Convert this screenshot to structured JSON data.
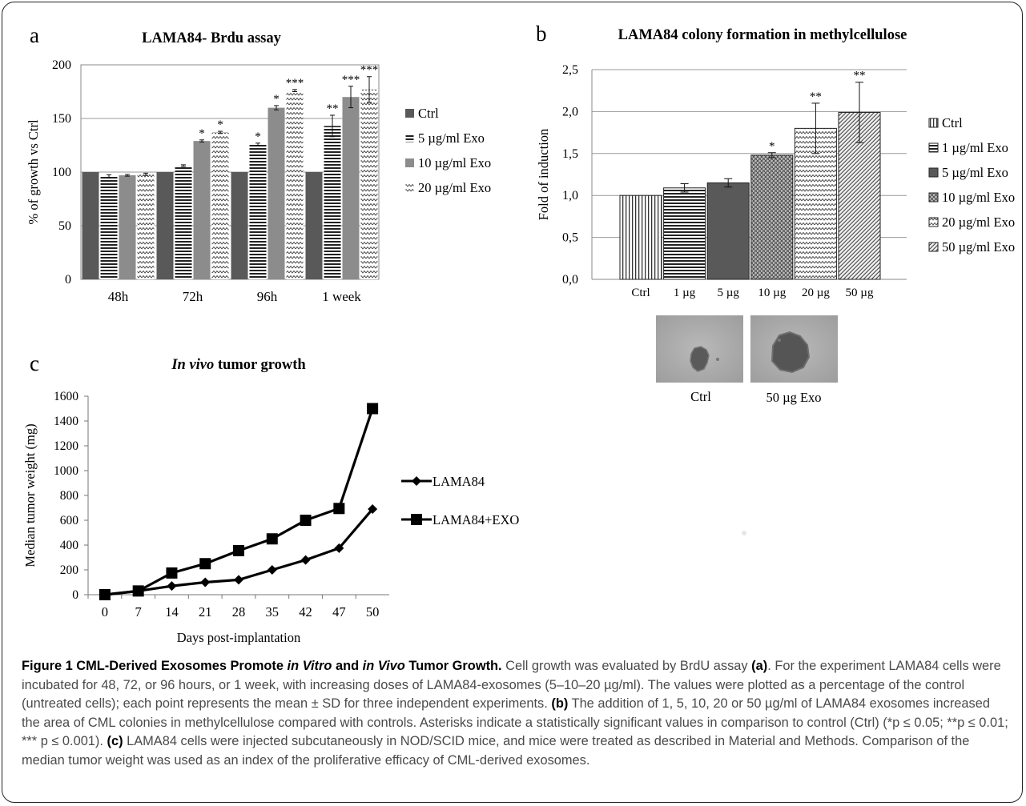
{
  "chart_data": [
    {
      "panel": "a",
      "type": "bar",
      "title": "LAMA84- Brdu assay",
      "xlabel": "",
      "ylabel": "% of growth vs Ctrl",
      "categories": [
        "48h",
        "72h",
        "96h",
        "1 week"
      ],
      "ylim": [
        0,
        200
      ],
      "yticks": [
        "0",
        "50",
        "100",
        "150",
        "200"
      ],
      "grid": true,
      "legend_position": "right",
      "series": [
        {
          "name": "Ctrl",
          "values": [
            100,
            100,
            100,
            100
          ],
          "errors": [
            0,
            0,
            0,
            0
          ],
          "stars": [
            "",
            "",
            "",
            ""
          ],
          "fill": "solid-dark"
        },
        {
          "name": "5 µg/ml Exo",
          "values": [
            96,
            106,
            126,
            143
          ],
          "errors": [
            1.5,
            0.8,
            1,
            10
          ],
          "stars": [
            "",
            "",
            "*",
            "**"
          ],
          "fill": "horizontal-lines"
        },
        {
          "name": "10 µg/ml Exo",
          "values": [
            97,
            129,
            160,
            170
          ],
          "errors": [
            0.8,
            1,
            2,
            10
          ],
          "stars": [
            "",
            "*",
            "*",
            "***"
          ],
          "fill": "solid-gray"
        },
        {
          "name": "20 µg/ml Exo",
          "values": [
            98,
            137,
            176,
            177
          ],
          "errors": [
            1,
            1,
            1,
            12
          ],
          "stars": [
            "",
            "*",
            "***",
            "***"
          ],
          "fill": "zigzag"
        }
      ]
    },
    {
      "panel": "b",
      "type": "bar",
      "title": "LAMA84 colony formation in methylcellulose",
      "xlabel": "",
      "ylabel": "Fold of induction",
      "categories": [
        "Ctrl",
        "1 µg",
        "5 µg",
        "10 µg",
        "20 µg",
        "50 µg"
      ],
      "ylim": [
        0,
        2.5
      ],
      "yticks": [
        "0,0",
        "0,5",
        "1,0",
        "1,5",
        "2,0",
        "2,5"
      ],
      "grid": true,
      "legend_position": "right",
      "values": [
        1.0,
        1.09,
        1.15,
        1.48,
        1.8,
        1.99
      ],
      "errors": [
        0,
        0.05,
        0.05,
        0.03,
        0.3,
        0.36
      ],
      "stars": [
        "",
        "",
        "",
        "*",
        "**",
        "**"
      ],
      "legend": [
        "Ctrl",
        "1 µg/ml Exo",
        "5 µg/ml Exo",
        "10 µg/ml Exo",
        "20 µg/ml Exo",
        "50 µg/ml Exo"
      ],
      "fills": [
        "vertical-lines",
        "horizontal-lines",
        "solid-dark",
        "crosshatch",
        "zigzag",
        "diagonal"
      ]
    },
    {
      "panel": "c",
      "type": "line",
      "title": "In vivo tumor growth",
      "title_italic_part": "In vivo",
      "title_rest": " tumor growth",
      "xlabel": "Days post-implantation",
      "ylabel": "Median tumor weight (mg)",
      "x": [
        "0",
        "7",
        "14",
        "21",
        "28",
        "35",
        "42",
        "47",
        "50"
      ],
      "ylim": [
        0,
        1600
      ],
      "yticks": [
        "0",
        "200",
        "400",
        "600",
        "800",
        "1000",
        "1200",
        "1400",
        "1600"
      ],
      "grid": false,
      "legend_position": "right",
      "series": [
        {
          "name": "LAMA84",
          "marker": "diamond",
          "values": [
            0,
            30,
            70,
            100,
            120,
            200,
            280,
            375,
            690
          ]
        },
        {
          "name": "LAMA84+EXO",
          "marker": "square",
          "values": [
            0,
            30,
            175,
            250,
            355,
            450,
            600,
            695,
            1500
          ]
        }
      ]
    }
  ],
  "panel_labels": {
    "a": "a",
    "b": "b",
    "c": "c"
  },
  "photos": [
    {
      "label": "Ctrl",
      "colony": "small"
    },
    {
      "label": "50 µg Exo",
      "colony": "large"
    }
  ],
  "caption": {
    "head_1": "Figure 1 CML-Derived Exosomes Promote ",
    "head_italic_1": "in Vitro",
    "head_2": " and ",
    "head_italic_2": "in Vivo",
    "head_3": " Tumor Growth.",
    "text_1": " Cell growth was evaluated by BrdU assay ",
    "ref_a": "(a)",
    "text_2": ". For the experiment LAMA84 cells were incubated for 48, 72, or 96 hours, or 1 week, with increasing doses of LAMA84-exosomes (5–10–20 µg/ml). The values were plotted as a percentage of the control (untreated cells); each point represents the mean ± SD for three independent experiments. ",
    "ref_b": "(b)",
    "text_3": " The addition of 1, 5, 10, 20 or 50 µg/ml of LAMA84 exosomes increased the area of CML colonies in methylcellulose compared with controls. Asterisks indicate a statistically significant values in comparison to control (Ctrl) (*p ≤ 0.05; **p ≤ 0.01; *** p ≤ 0.001). ",
    "ref_c": "(c)",
    "text_4": " LAMA84 cells were injected subcutaneously in NOD/SCID mice, and mice were treated as described in Material and Methods. Comparison of the median tumor weight was used as an index of the proliferative efficacy of CML-derived exosomes."
  }
}
